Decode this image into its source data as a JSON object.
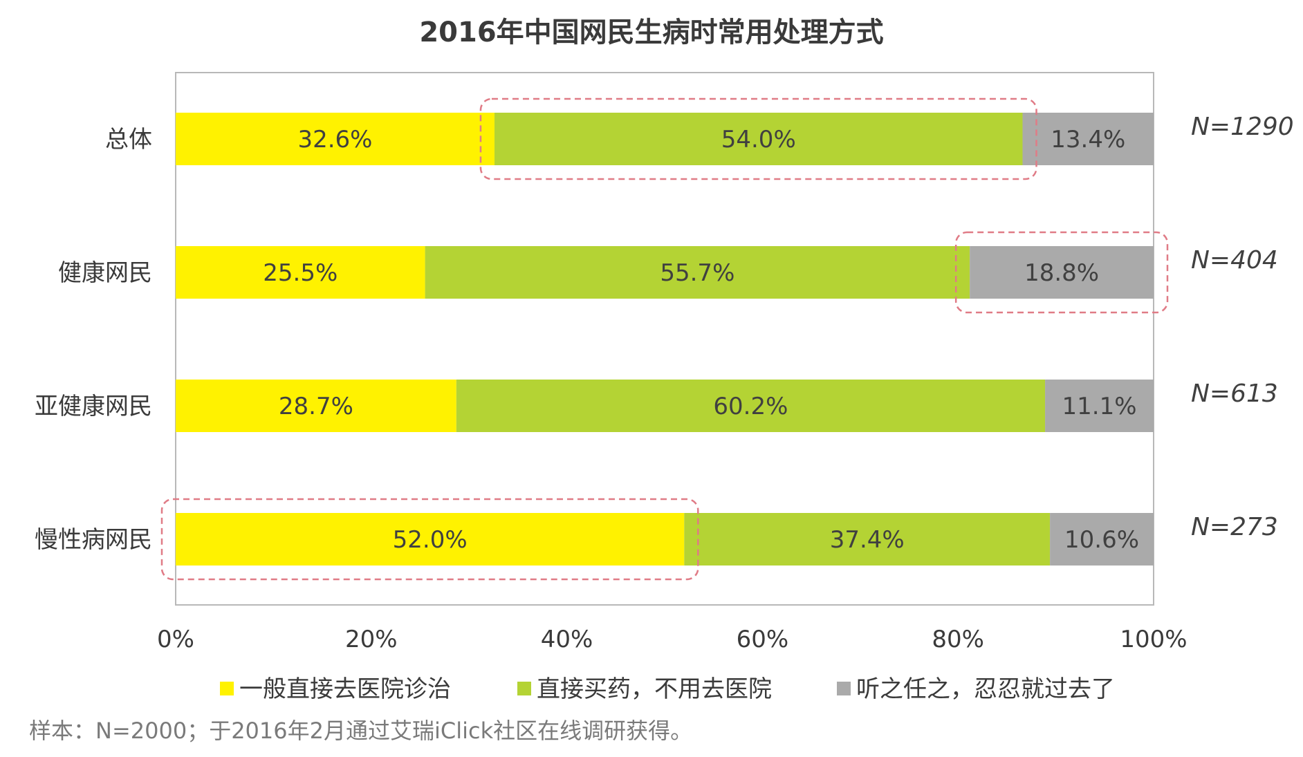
{
  "chart_data": {
    "type": "bar",
    "orientation": "horizontal",
    "stacked": true,
    "title": "2016年中国网民生病时常用处理方式",
    "categories": [
      "总体",
      "健康网民",
      "亚健康网民",
      "慢性病网民"
    ],
    "sample_sizes": [
      "N=1290",
      "N=404",
      "N=613",
      "N=273"
    ],
    "series": [
      {
        "name": "一般直接去医院诊治",
        "color": "#fff200",
        "values": [
          32.6,
          25.5,
          28.7,
          52.0
        ],
        "labels": [
          "32.6%",
          "25.5%",
          "28.7%",
          "52.0%"
        ]
      },
      {
        "name": "直接买药，不用去医院",
        "color": "#b4d334",
        "values": [
          54.0,
          55.7,
          60.2,
          37.4
        ],
        "labels": [
          "54.0%",
          "55.7%",
          "60.2%",
          "37.4%"
        ]
      },
      {
        "name": "听之任之，忍忍就过去了",
        "color": "#aaaaaa",
        "values": [
          13.4,
          18.8,
          11.1,
          10.6
        ],
        "labels": [
          "13.4%",
          "18.8%",
          "11.1%",
          "10.6%"
        ]
      }
    ],
    "xlim": [
      0,
      100
    ],
    "xticks": [
      "0%",
      "20%",
      "40%",
      "60%",
      "80%",
      "100%"
    ],
    "grid": false,
    "legend_position": "bottom",
    "highlights": [
      {
        "category_index": 0,
        "series_index": 1
      },
      {
        "category_index": 1,
        "series_index": 2
      },
      {
        "category_index": 3,
        "series_index": 0
      }
    ],
    "highlight_color": "#e07b86"
  },
  "footnote": "样本：N=2000；于2016年2月通过艾瑞iClick社区在线调研获得。"
}
